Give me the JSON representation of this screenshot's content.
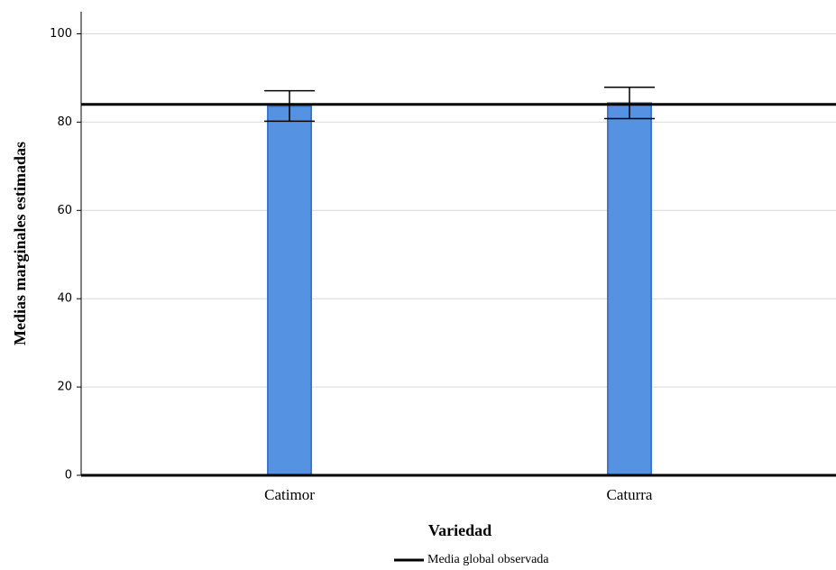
{
  "chart_data": {
    "type": "bar",
    "x_label": "Variedad",
    "y_label": "Medias marginales estimadas",
    "categories": [
      "Catimor",
      "Caturra"
    ],
    "values": [
      83.6,
      84.3
    ],
    "ci_lower": [
      80.2,
      80.8
    ],
    "ci_upper": [
      87.1,
      87.9
    ],
    "color": "#5592e2",
    "ylim": [
      0,
      105
    ],
    "yticks": [
      0,
      20,
      40,
      60,
      80,
      100
    ],
    "grid": true,
    "reference_line": {
      "name": "Media global observada",
      "value": 84.0,
      "color": "#000000"
    },
    "legend_position": "bottom"
  }
}
